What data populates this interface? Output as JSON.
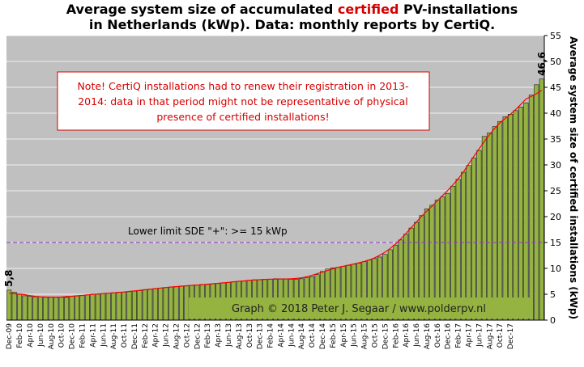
{
  "title": {
    "line1_prefix": "Average system size of accumulated ",
    "line1_highlight": "certified",
    "line1_suffix": " PV-installations",
    "line2": "in Netherlands (kWp). Data: monthly reports by CertiQ."
  },
  "note": {
    "lines": [
      "Note! CertiQ installations had to renew their registration in 2013-",
      "2014:  data in that period  might  not be representative of physical",
      "presence of certified installations!"
    ]
  },
  "chart_data": {
    "type": "bar",
    "ylabel": "Average system size of certified installations  (kWp)",
    "ylim": [
      0,
      55
    ],
    "yticks": [
      0,
      5,
      10,
      15,
      20,
      25,
      30,
      35,
      40,
      45,
      50,
      55
    ],
    "grid": true,
    "x_tick_labels": [
      "Dec-09",
      "Feb-10",
      "Apr-10",
      "Jun-10",
      "Aug-10",
      "Oct-10",
      "Dec-10",
      "Feb-11",
      "Apr-11",
      "Jun-11",
      "Aug-11",
      "Oct-11",
      "Dec-11",
      "Feb-12",
      "Apr-12",
      "Jun-12",
      "Aug-12",
      "Oct-12",
      "Dec-12",
      "Feb-13",
      "Apr-13",
      "Jun-13",
      "Aug-13",
      "Oct-13",
      "Dec-13",
      "Feb-14",
      "Apr-14",
      "Jun-14",
      "Aug-14",
      "Oct-14",
      "Dec-14",
      "Feb-15",
      "Apr-15",
      "Jun-15",
      "Aug-15",
      "Oct-15",
      "Dec-15",
      "Feb-16",
      "Apr-16",
      "Jun-16",
      "Aug-16",
      "Oct-16",
      "Dec-16",
      "Feb-17",
      "Apr-17",
      "Jun-17",
      "Aug-17",
      "Oct-17",
      "Dec-17"
    ],
    "series": [
      {
        "values": [
          5.8,
          5.4,
          5.0,
          4.7,
          4.6,
          4.5,
          4.5,
          4.4,
          4.5,
          4.4,
          4.4,
          4.4,
          4.6,
          4.7,
          4.8,
          4.9,
          5.0,
          5.0,
          5.1,
          5.2,
          5.3,
          5.4,
          5.4,
          5.5,
          5.6,
          5.7,
          5.9,
          6.0,
          6.1,
          6.2,
          6.3,
          6.4,
          6.5,
          6.6,
          6.6,
          6.7,
          6.8,
          6.9,
          6.9,
          7.0,
          7.1,
          7.2,
          7.3,
          7.4,
          7.5,
          7.6,
          7.7,
          7.8,
          7.8,
          7.9,
          7.9,
          8.0,
          8.0,
          8.0,
          7.9,
          7.9,
          8.0,
          8.2,
          8.4,
          8.8,
          9.4,
          9.9,
          10.1,
          10.2,
          10.4,
          10.6,
          10.8,
          11.0,
          11.3,
          11.6,
          11.9,
          12.2,
          12.7,
          13.6,
          14.5,
          15.5,
          16.6,
          17.8,
          18.9,
          20.2,
          21.5,
          22.2,
          23.2,
          23.8,
          24.5,
          25.9,
          27.2,
          28.6,
          29.9,
          31.3,
          32.8,
          35.5,
          36.2,
          37.4,
          38.4,
          39.3,
          39.8,
          40.5,
          41.2,
          42.0,
          43.5,
          45.5,
          46.6
        ],
        "color": "#95b341"
      },
      {
        "name": "trend",
        "type": "line",
        "color": "#ff0000"
      }
    ],
    "annotations": {
      "first_value_label": "5,8",
      "last_value_label": "46,6",
      "reference_line": {
        "y": 15,
        "label": "Lower limit  SDE \"+\":    >= 15 kWp",
        "color": "#9933cc"
      },
      "watermark": "Graph © 2018 Peter J. Segaar / www.polderpv.nl"
    },
    "plot_background": "#c0c0c0"
  }
}
